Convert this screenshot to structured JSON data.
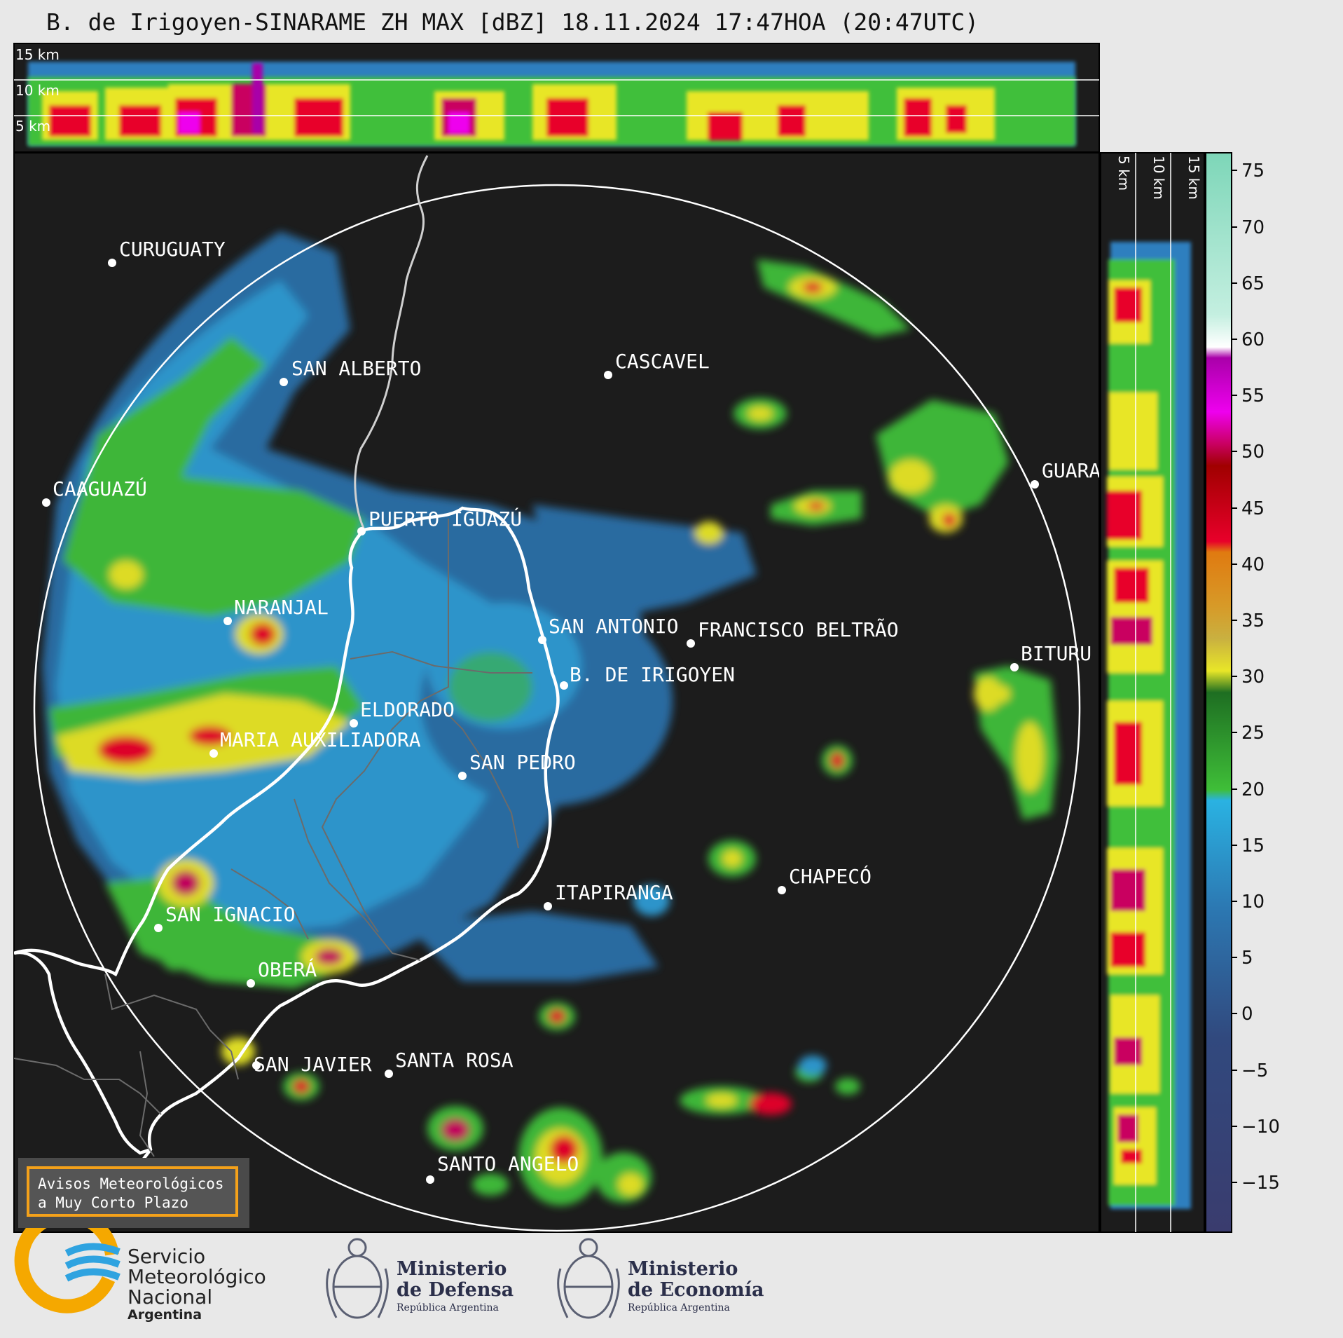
{
  "title": "B. de Irigoyen-SINARAME ZH MAX [dBZ] 18.11.2024 17:47HOA (20:47UTC)",
  "top_panel": {
    "height_labels": [
      "15 km",
      "10 km",
      "5 km"
    ]
  },
  "side_panel": {
    "height_labels": [
      "5 km",
      "10 km",
      "15 km"
    ]
  },
  "colorbar": {
    "ticks": [
      "75",
      "70",
      "65",
      "60",
      "55",
      "50",
      "45",
      "40",
      "35",
      "30",
      "25",
      "20",
      "15",
      "10",
      "5",
      "0",
      "−5",
      "−10",
      "−15"
    ]
  },
  "cities": [
    {
      "name": "CURUGUATY"
    },
    {
      "name": "SAN ALBERTO"
    },
    {
      "name": "CASCAVEL"
    },
    {
      "name": "CAAGUAZÚ"
    },
    {
      "name": "GUARA"
    },
    {
      "name": "PUERTO IGUAZÚ"
    },
    {
      "name": "NARANJAL"
    },
    {
      "name": "SAN ANTONIO"
    },
    {
      "name": "FRANCISCO BELTRÃO"
    },
    {
      "name": "BITURU"
    },
    {
      "name": "B. DE IRIGOYEN"
    },
    {
      "name": "ELDORADO"
    },
    {
      "name": "MARIA AUXILIADORA"
    },
    {
      "name": "SAN PEDRO"
    },
    {
      "name": "CHAPECÓ"
    },
    {
      "name": "ITAPIRANGA"
    },
    {
      "name": "SAN IGNACIO"
    },
    {
      "name": "OBERÁ"
    },
    {
      "name": "SAN JAVIER"
    },
    {
      "name": "SANTA ROSA"
    },
    {
      "name": "SANTO ANGELO"
    }
  ],
  "notice": {
    "line1": "Avisos Meteorológicos",
    "line2": "a Muy Corto Plazo"
  },
  "logos": {
    "smn": {
      "line1": "Servicio",
      "line2": "Meteorológico",
      "line3": "Nacional",
      "line4": "Argentina"
    },
    "defensa": {
      "line1": "Ministerio",
      "line2": "de Defensa",
      "line3": "República Argentina"
    },
    "economia": {
      "line1": "Ministerio",
      "line2": "de Economía",
      "line3": "República Argentina"
    }
  },
  "colors": {
    "background": "#e8e8e8",
    "map": "#1c1c1c",
    "accent": "#f4a11a",
    "smn_blue": "#2fa3e0",
    "smn_orange": "#f5a800"
  }
}
